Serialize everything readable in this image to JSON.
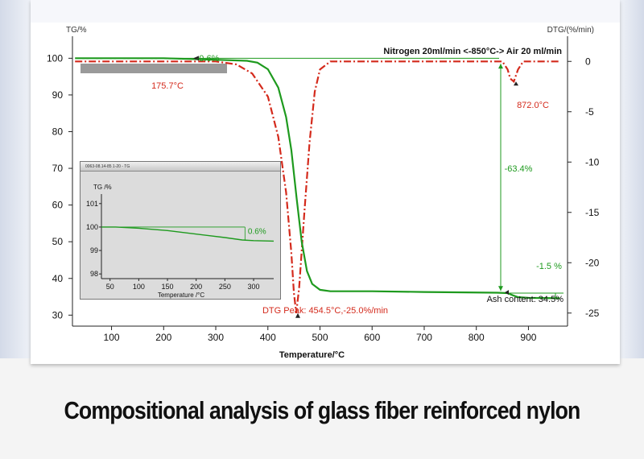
{
  "caption": "Compositional analysis of glass fiber reinforced nylon",
  "colors": {
    "tg": "#1e9a1e",
    "dtg": "#d42a1c",
    "text_red": "#d42a1c",
    "text_green": "#1e9a1e",
    "axis": "#222222",
    "gray_bar": "#9a9a9a"
  },
  "chart_data": [
    {
      "type": "line",
      "xlabel": "Temperature/°C",
      "ylabel_left": "TG/%",
      "ylabel_right": "DTG/(%/min)",
      "atmosphere": "Nitrogen 20ml/min <-850°C-> Air 20 ml/min",
      "x_ticks": [
        100,
        200,
        300,
        400,
        500,
        600,
        700,
        800,
        900
      ],
      "y_left_ticks": [
        30,
        40,
        50,
        60,
        70,
        80,
        90,
        100
      ],
      "y_right_ticks": [
        0,
        -5,
        -10,
        -15,
        -20,
        -25
      ],
      "xlim": [
        25,
        975
      ],
      "ylim_left": [
        27,
        106
      ],
      "ylim_right": [
        -26.3,
        2.5
      ],
      "series": [
        {
          "axis": "left",
          "style": "solid",
          "x": [
            30,
            100,
            200,
            300,
            360,
            380,
            400,
            420,
            435,
            445,
            455,
            465,
            475,
            485,
            500,
            520,
            600,
            700,
            840,
            860,
            870,
            880,
            900,
            960
          ],
          "y": [
            100,
            100,
            100,
            99.6,
            99.3,
            98.8,
            97.0,
            92.0,
            84.0,
            75.0,
            62.0,
            50.0,
            42.0,
            38.5,
            36.9,
            36.5,
            36.5,
            36.3,
            36.1,
            36.0,
            35.4,
            34.9,
            34.7,
            34.6
          ]
        },
        {
          "axis": "right",
          "style": "dash-dot",
          "x": [
            30,
            100,
            200,
            300,
            340,
            370,
            400,
            420,
            435,
            445,
            450,
            454.5,
            460,
            470,
            480,
            490,
            500,
            520,
            600,
            700,
            850,
            860,
            865,
            872,
            880,
            890,
            960
          ],
          "y": [
            0,
            0,
            0,
            0,
            -0.3,
            -1.2,
            -3.5,
            -7.5,
            -13.0,
            -19.0,
            -23.0,
            -25.0,
            -22.5,
            -15.0,
            -8.0,
            -3.0,
            -0.8,
            0,
            0,
            0,
            0,
            -0.8,
            -1.7,
            -2.0,
            -0.8,
            0,
            0
          ]
        }
      ],
      "annotations": {
        "mass_loss_1": "-0.6%",
        "onset_temp": "175.7°C",
        "mass_loss_2": "-63.4%",
        "mass_loss_3": "-1.5 %",
        "air_peak": "872.0°C",
        "dtg_peak": "DTG Peak: 454.5°C,-25.0%/min",
        "ash": "Ash content: 34.5%"
      }
    },
    {
      "type": "line",
      "title": "Inset",
      "header": "0063-08.14-85 1-20 - TG",
      "ylabel": "TG /%",
      "xlabel": "Temperature /°C",
      "x_ticks": [
        50,
        100,
        150,
        200,
        250,
        300
      ],
      "y_ticks": [
        98,
        99,
        100,
        101
      ],
      "xlim": [
        35,
        335
      ],
      "ylim": [
        97.8,
        101.2
      ],
      "annotation": "0.6%",
      "series": [
        {
          "x": [
            35,
            60,
            100,
            150,
            200,
            250,
            280,
            300,
            335
          ],
          "y": [
            100,
            100,
            99.95,
            99.85,
            99.7,
            99.55,
            99.45,
            99.42,
            99.4
          ]
        }
      ]
    }
  ]
}
